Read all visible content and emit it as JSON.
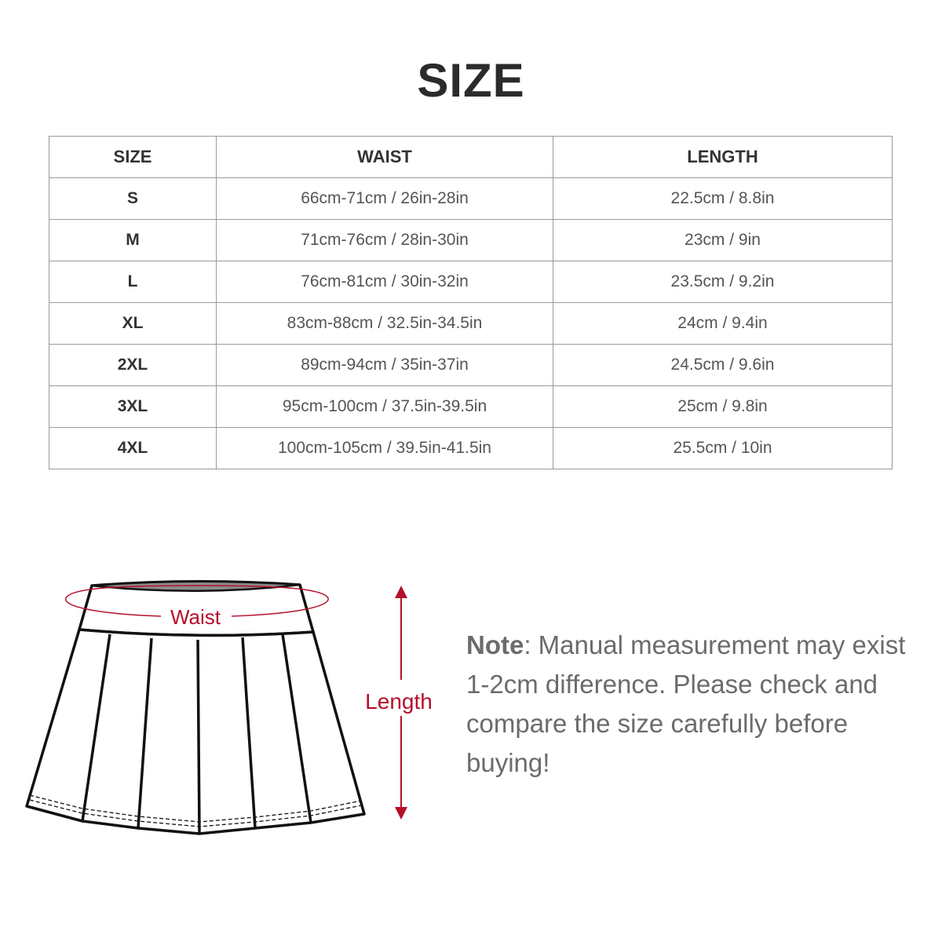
{
  "title": "SIZE",
  "table": {
    "headers": [
      "SIZE",
      "WAIST",
      "LENGTH"
    ],
    "rows": [
      [
        "S",
        "66cm-71cm / 26in-28in",
        "22.5cm / 8.8in"
      ],
      [
        "M",
        "71cm-76cm / 28in-30in",
        "23cm / 9in"
      ],
      [
        "L",
        "76cm-81cm / 30in-32in",
        "23.5cm / 9.2in"
      ],
      [
        "XL",
        "83cm-88cm / 32.5in-34.5in",
        "24cm / 9.4in"
      ],
      [
        "2XL",
        "89cm-94cm / 35in-37in",
        "24.5cm / 9.6in"
      ],
      [
        "3XL",
        "95cm-100cm / 37.5in-39.5in",
        "25cm / 9.8in"
      ],
      [
        "4XL",
        "100cm-105cm / 39.5in-41.5in",
        "25.5cm / 10in"
      ]
    ]
  },
  "diagram": {
    "waist_label": "Waist",
    "length_label": "Length",
    "accent_color": "#b5102a"
  },
  "note": {
    "label": "Note",
    "text": ": Manual measurement may exist 1-2cm difference. Please check and compare the size carefully before buying!"
  }
}
